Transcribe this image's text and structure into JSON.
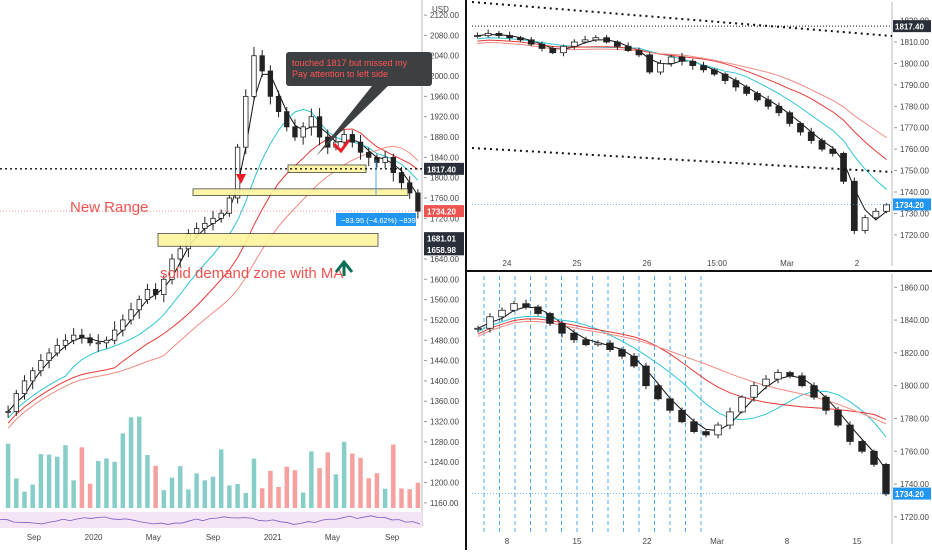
{
  "colors": {
    "up": "#26a69a",
    "down": "#ef5350",
    "candle": "#222222",
    "ma_black": "#111111",
    "ma_cyan": "#2ec4d6",
    "ma_red": "#e53935",
    "ma_salmon": "#f28b82",
    "highlight": "#fff59d",
    "axis_text": "#444444",
    "price_tag": "#2a2e39",
    "last_price_tag": "#ef5350",
    "dotted": "#111111",
    "accent_blue": "#2196f3",
    "arrow_red": "#ee1c25",
    "arrow_green": "#0b6e57",
    "callout_bg": "#3c4043",
    "callout_text": "#ff5252"
  },
  "panels": {
    "left": {
      "currency": "USD",
      "annotations": {
        "callout": "touched 1817 but missed my\nPay attention to left side",
        "new_range": "New Range",
        "demand_zone": "solid demand zone with MA",
        "measure": "−83.95 (−4.62%) −8395"
      },
      "price_tags": [
        {
          "label": "1817.40",
          "value": 1817.4,
          "style": "dark"
        },
        {
          "label": "1734.20",
          "value": 1734.2,
          "style": "red"
        },
        {
          "label": "1681.01",
          "value": 1681.01,
          "style": "dark"
        },
        {
          "label": "1658.98",
          "value": 1658.98,
          "style": "dark"
        }
      ]
    },
    "top_right": {
      "price_tags": [
        {
          "label": "1817.40",
          "value": 1817.4,
          "style": "dark"
        },
        {
          "label": "1734.20",
          "value": 1734.2,
          "style": "blue"
        }
      ]
    },
    "bottom_right": {
      "price_tags": [
        {
          "label": "1734.20",
          "value": 1734.2,
          "style": "blue"
        }
      ]
    }
  },
  "chart_data": [
    {
      "type": "line",
      "panel": "left",
      "title": "",
      "x_tick_labels": [
        "Sep",
        "2020",
        "May",
        "Sep",
        "2021",
        "May",
        "Sep"
      ],
      "y_tick_labels": [
        "2120.00",
        "2080.00",
        "2040.00",
        "2000.00",
        "1960.00",
        "1920.00",
        "1880.00",
        "1840.00",
        "1800.00",
        "1760.00",
        "1720.00",
        "1680.00",
        "1640.00",
        "1600.00",
        "1560.00",
        "1520.00",
        "1480.00",
        "1440.00",
        "1400.00",
        "1360.00",
        "1320.00",
        "1280.00",
        "1240.00",
        "1200.00",
        "1160.00"
      ],
      "ylim": [
        1142,
        2130
      ],
      "series": [
        {
          "name": "",
          "values": [
            1340,
            1375,
            1400,
            1420,
            1440,
            1455,
            1470,
            1480,
            1490,
            1485,
            1475,
            1475,
            1480,
            1500,
            1520,
            1540,
            1560,
            1580,
            1570,
            1600,
            1640,
            1660,
            1690,
            1700,
            1710,
            1720,
            1730,
            1760,
            1860,
            1960,
            2040,
            2010,
            1960,
            1930,
            1900,
            1880,
            1900,
            1920,
            1880,
            1860,
            1870,
            1885,
            1870,
            1850,
            1840,
            1830,
            1840,
            1810,
            1790,
            1770,
            1734
          ]
        }
      ],
      "highlight_zones": [
        [
          1810,
          1825
        ],
        [
          1765,
          1778
        ],
        [
          1665,
          1690
        ]
      ],
      "horizontal_levels": [
        1817.4,
        1734.2
      ]
    },
    {
      "type": "line",
      "panel": "top_right",
      "title": "",
      "x_tick_labels": [
        "24",
        "25",
        "26",
        "15:00",
        "Mar",
        "2"
      ],
      "y_tick_labels": [
        "1820.00",
        "1810.00",
        "1800.00",
        "1790.00",
        "1780.00",
        "1770.00",
        "1760.00",
        "1750.00",
        "1740.00",
        "1730.00",
        "1720.00"
      ],
      "ylim": [
        1712,
        1824
      ],
      "series": [
        {
          "name": "",
          "values": [
            1813,
            1814,
            1813,
            1812,
            1811,
            1809,
            1807,
            1805,
            1808,
            1810,
            1811,
            1812,
            1810,
            1808,
            1806,
            1804,
            1796,
            1800,
            1803,
            1801,
            1799,
            1797,
            1795,
            1792,
            1789,
            1786,
            1783,
            1780,
            1777,
            1772,
            1768,
            1764,
            1760,
            1758,
            1745,
            1722,
            1728,
            1731,
            1734
          ]
        }
      ]
    },
    {
      "type": "line",
      "panel": "bottom_right",
      "title": "",
      "x_tick_labels": [
        "8",
        "15",
        "22",
        "Mar",
        "8",
        "15"
      ],
      "y_tick_labels": [
        "1860.00",
        "1840.00",
        "1820.00",
        "1800.00",
        "1780.00",
        "1760.00",
        "1740.00",
        "1720.00"
      ],
      "ylim": [
        1712,
        1862
      ],
      "series": [
        {
          "name": "",
          "values": [
            1835,
            1842,
            1846,
            1850,
            1848,
            1844,
            1838,
            1832,
            1828,
            1825,
            1826,
            1822,
            1818,
            1812,
            1800,
            1792,
            1785,
            1778,
            1772,
            1770,
            1776,
            1784,
            1793,
            1800,
            1804,
            1808,
            1806,
            1800,
            1793,
            1785,
            1776,
            1766,
            1760,
            1752,
            1734
          ]
        }
      ]
    }
  ]
}
